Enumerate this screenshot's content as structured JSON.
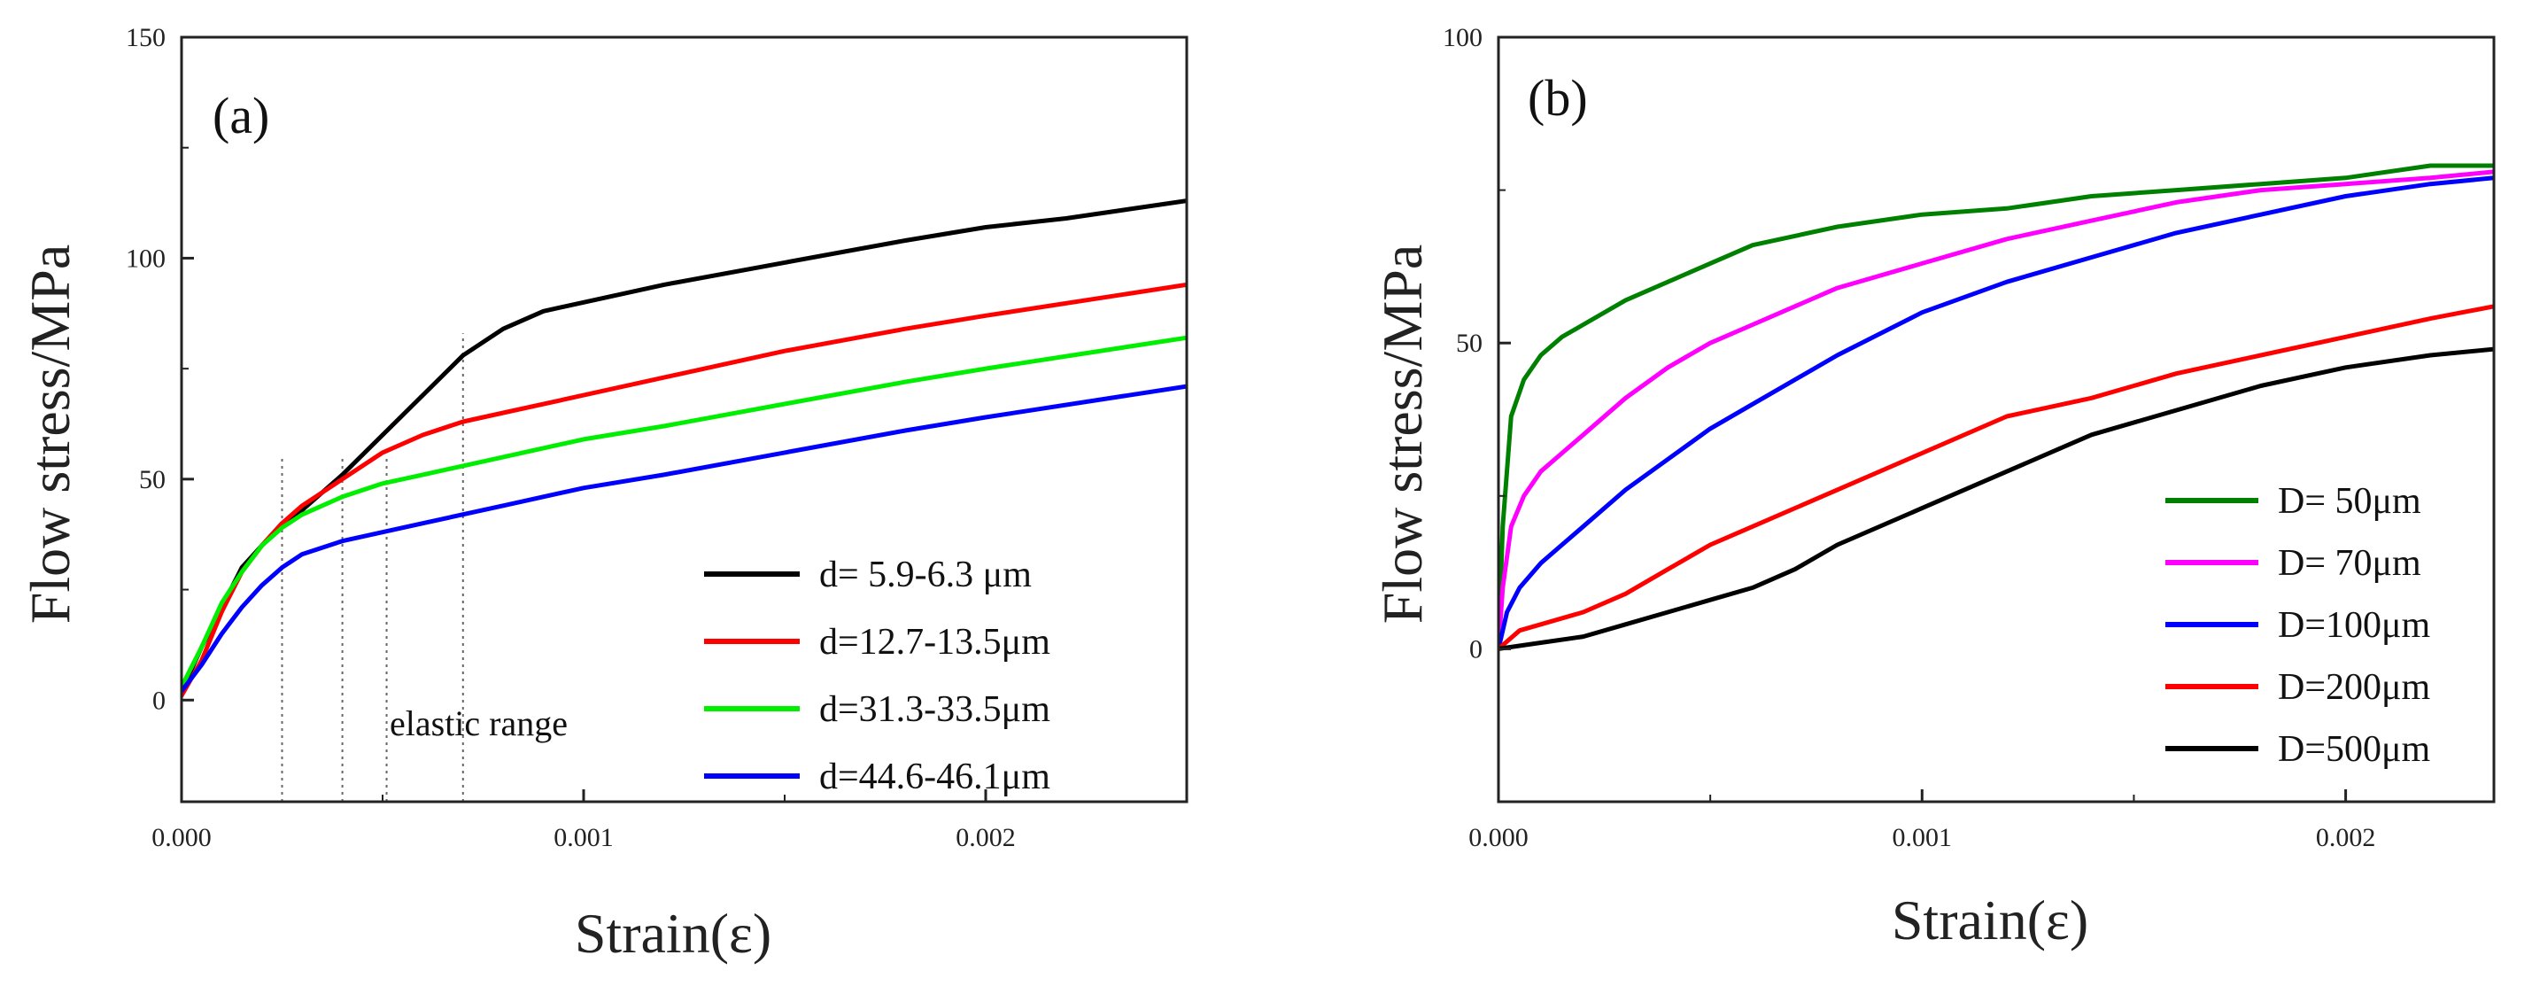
{
  "chart_data": [
    {
      "type": "line",
      "panel_label": "(a)",
      "xlabel": "Strain(ε)",
      "ylabel": "Flow stress/MPa",
      "xlim": [
        0,
        0.0025
      ],
      "ylim": [
        -23,
        150
      ],
      "x_ticks": [
        0,
        0.001,
        0.002
      ],
      "x_tick_labels": [
        "0.000",
        "0.001",
        "0.002"
      ],
      "y_ticks": [
        0,
        50,
        100,
        150
      ],
      "y_tick_labels": [
        "0",
        "50",
        "100",
        "150"
      ],
      "annotation": "elastic range",
      "reference_lines_x": [
        0.00025,
        0.0004,
        0.00051,
        0.0007
      ],
      "legend_position": "bottom-right",
      "series": [
        {
          "name": "d= 5.9-6.3  μm",
          "color": "#000000",
          "x": [
            0,
            5e-05,
            0.0001,
            0.00015,
            0.0002,
            0.00025,
            0.0003,
            0.0004,
            0.0005,
            0.0006,
            0.0007,
            0.0008,
            0.0009,
            0.001,
            0.0012,
            0.0015,
            0.0018,
            0.002,
            0.0022,
            0.0025
          ],
          "y": [
            2,
            12,
            21,
            30,
            35,
            40,
            43,
            51,
            60,
            69,
            78,
            84,
            88,
            90,
            94,
            99,
            104,
            107,
            109,
            113
          ]
        },
        {
          "name": "d=12.7-13.5μm",
          "color": "#ff0000",
          "x": [
            0,
            5e-05,
            0.0001,
            0.00015,
            0.0002,
            0.00025,
            0.0003,
            0.0004,
            0.0005,
            0.0006,
            0.0007,
            0.0008,
            0.001,
            0.0012,
            0.0015,
            0.0018,
            0.002,
            0.0025
          ],
          "y": [
            1,
            9,
            20,
            29,
            35,
            40,
            44,
            50,
            56,
            60,
            63,
            65,
            69,
            73,
            79,
            84,
            87,
            94
          ]
        },
        {
          "name": "d=31.3-33.5μm",
          "color": "#00ee00",
          "x": [
            0,
            5e-05,
            0.0001,
            0.00015,
            0.0002,
            0.00025,
            0.0003,
            0.00035,
            0.0004,
            0.0005,
            0.0006,
            0.0008,
            0.001,
            0.0012,
            0.0015,
            0.0018,
            0.002,
            0.0025
          ],
          "y": [
            3,
            12,
            22,
            29,
            35,
            39,
            42,
            44,
            46,
            49,
            51,
            55,
            59,
            62,
            67,
            72,
            75,
            82
          ]
        },
        {
          "name": "d=44.6-46.1μm",
          "color": "#0000ff",
          "x": [
            0,
            5e-05,
            0.0001,
            0.00015,
            0.0002,
            0.00025,
            0.0003,
            0.0004,
            0.0005,
            0.0006,
            0.0008,
            0.001,
            0.0012,
            0.0015,
            0.0018,
            0.002,
            0.0025
          ],
          "y": [
            2,
            8,
            15,
            21,
            26,
            30,
            33,
            36,
            38,
            40,
            44,
            48,
            51,
            56,
            61,
            64,
            71
          ]
        }
      ]
    },
    {
      "type": "line",
      "panel_label": "(b)",
      "xlabel": "Strain(ε)",
      "ylabel": "Flow stress/MPa",
      "xlim": [
        0,
        0.00235
      ],
      "ylim": [
        -25,
        100
      ],
      "x_ticks": [
        0,
        0.001,
        0.002
      ],
      "x_tick_labels": [
        "0.000",
        "0.001",
        "0.002"
      ],
      "y_ticks": [
        0,
        50,
        100
      ],
      "y_tick_labels": [
        "0",
        "50",
        "100"
      ],
      "legend_position": "bottom-right",
      "series": [
        {
          "name": "D=  50μm",
          "color": "#008000",
          "x": [
            0,
            1e-05,
            3e-05,
            6e-05,
            0.0001,
            0.00015,
            0.0002,
            0.0003,
            0.0004,
            0.0005,
            0.0006,
            0.0008,
            0.001,
            0.0012,
            0.0014,
            0.0016,
            0.0018,
            0.002,
            0.0022,
            0.00235
          ],
          "y": [
            0,
            20,
            38,
            44,
            48,
            51,
            53,
            57,
            60,
            63,
            66,
            69,
            71,
            72,
            74,
            75,
            76,
            77,
            79,
            79
          ]
        },
        {
          "name": "D=  70μm",
          "color": "#ff00ff",
          "x": [
            0,
            1e-05,
            3e-05,
            6e-05,
            0.0001,
            0.00015,
            0.0002,
            0.0003,
            0.0004,
            0.0005,
            0.0006,
            0.0008,
            0.001,
            0.0012,
            0.0014,
            0.0016,
            0.0018,
            0.002,
            0.0022,
            0.00235
          ],
          "y": [
            0,
            10,
            20,
            25,
            29,
            32,
            35,
            41,
            46,
            50,
            53,
            59,
            63,
            67,
            70,
            73,
            75,
            76,
            77,
            78
          ]
        },
        {
          "name": "D=100μm",
          "color": "#0000ff",
          "x": [
            0,
            2e-05,
            5e-05,
            0.0001,
            0.00015,
            0.0002,
            0.0003,
            0.0004,
            0.0005,
            0.0006,
            0.0008,
            0.001,
            0.0012,
            0.0014,
            0.0016,
            0.0018,
            0.002,
            0.0022,
            0.00235
          ],
          "y": [
            0,
            6,
            10,
            14,
            17,
            20,
            26,
            31,
            36,
            40,
            48,
            55,
            60,
            64,
            68,
            71,
            74,
            76,
            77
          ]
        },
        {
          "name": "D=200μm",
          "color": "#ff0000",
          "x": [
            0,
            5e-05,
            0.0001,
            0.0002,
            0.0003,
            0.0004,
            0.0005,
            0.0006,
            0.0008,
            0.001,
            0.0012,
            0.0014,
            0.0016,
            0.0018,
            0.002,
            0.0022,
            0.00235
          ],
          "y": [
            0,
            3,
            4,
            6,
            9,
            13,
            17,
            20,
            26,
            32,
            38,
            41,
            45,
            48,
            51,
            54,
            56
          ]
        },
        {
          "name": "D=500μm",
          "color": "#000000",
          "x": [
            0,
            0.0001,
            0.0002,
            0.0003,
            0.0004,
            0.0005,
            0.0006,
            0.0007,
            0.0008,
            0.001,
            0.0012,
            0.0014,
            0.0016,
            0.0018,
            0.002,
            0.0022,
            0.00235
          ],
          "y": [
            0,
            1,
            2,
            4,
            6,
            8,
            10,
            13,
            17,
            23,
            29,
            35,
            39,
            43,
            46,
            48,
            49
          ]
        }
      ]
    }
  ]
}
